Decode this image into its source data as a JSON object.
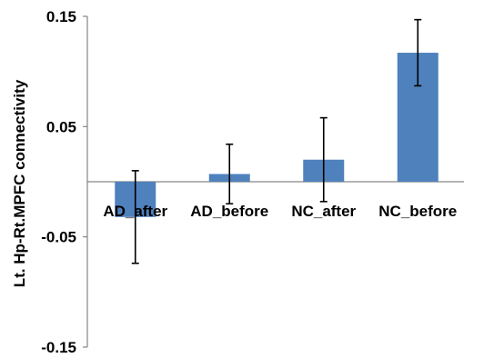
{
  "chart_data": {
    "type": "bar",
    "categories": [
      "AD_after",
      "AD_before",
      "NC_after",
      "NC_before"
    ],
    "values": [
      -0.032,
      0.007,
      0.02,
      0.117
    ],
    "error": [
      0.042,
      0.027,
      0.038,
      0.03
    ],
    "ylabel": "Lt. Hp-Rt.MPFC connectivity",
    "ylim": [
      -0.15,
      0.15
    ],
    "yticks": [
      0.15,
      0.05,
      -0.05,
      -0.15
    ],
    "ytick_labels": [
      "0.15",
      "0.05",
      "-0.05",
      "-0.15"
    ],
    "grid": false,
    "legend": "none",
    "colors": {
      "bar": "#4f81bd",
      "axis": "#868686",
      "error_bar": "#000000"
    }
  }
}
